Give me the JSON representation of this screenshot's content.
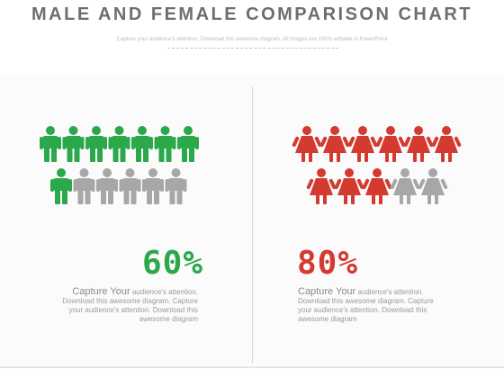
{
  "title": "MALE AND FEMALE COMPARISON CHART",
  "subtitle": "Capture your audience's attention. Download this awesome diagram. All images are 100% editable in PowerPoint",
  "colors": {
    "male": "#2aa84a",
    "female": "#d43a2f",
    "inactive": "#a7a7a7"
  },
  "chart_data": [
    {
      "type": "pictogram",
      "icon": "male-person-icon",
      "total": 13,
      "highlighted": 8,
      "value_label": "60%",
      "description_lead": "Capture Your",
      "description": "audience's attention. Download this awesome diagram. Capture your audience's attention. Download this awesome diagram"
    },
    {
      "type": "pictogram",
      "icon": "female-person-icon",
      "total": 11,
      "highlighted": 9,
      "value_label": "80%",
      "description_lead": "Capture Your",
      "description": "audience's attention. Download this awesome diagram. Capture your audience's attention. Download this awesome diagram"
    }
  ]
}
